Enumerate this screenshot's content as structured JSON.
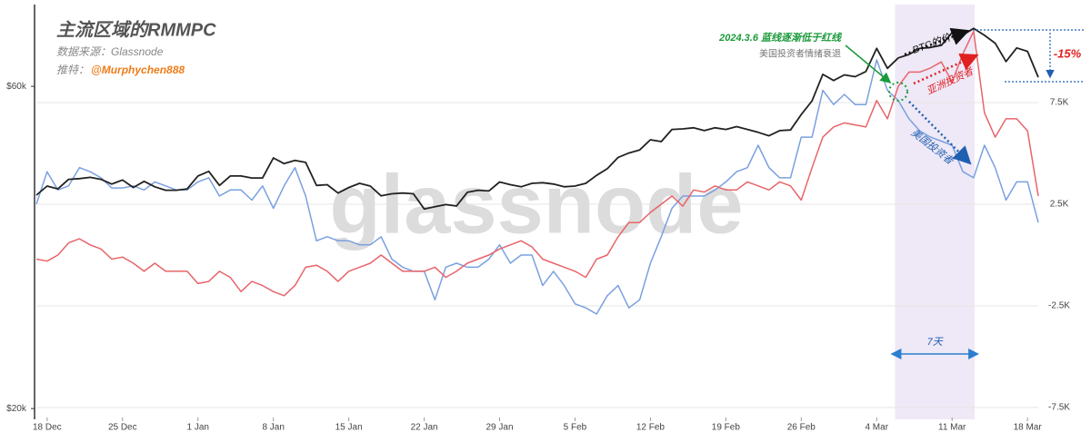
{
  "chart_data": {
    "type": "line",
    "title": "主流区域的RMMPC",
    "source": "数据来源：Glassnode",
    "twitter_label": "推特：",
    "twitter_handle": "@Murphychen888",
    "watermark": "glassnode",
    "annotations": {
      "date_note": "2024.3.6 蓝线逐渐低于红线",
      "sentiment_note": "美国投资者情绪衰退",
      "drop": "-15%"
    },
    "highlight": {
      "x": [
        78.7,
        86.1
      ],
      "label": "7天",
      "color": "#eee8f7"
    },
    "yscale": "log",
    "grid": true,
    "x": [
      -1,
      0,
      1,
      2,
      3,
      4,
      5,
      6,
      7,
      8,
      9,
      10,
      11,
      12,
      13,
      14,
      15,
      16,
      17,
      18,
      19,
      20,
      21,
      22,
      23,
      24,
      25,
      26,
      27,
      28,
      29,
      30,
      31,
      32,
      33,
      34,
      35,
      36,
      37,
      38,
      39,
      40,
      41,
      42,
      43,
      44,
      45,
      46,
      47,
      48,
      49,
      50,
      51,
      52,
      53,
      54,
      55,
      56,
      57,
      58,
      59,
      60,
      61,
      62,
      63,
      64,
      65,
      66,
      67,
      68,
      69,
      70,
      71,
      72,
      73,
      74,
      75,
      76,
      77,
      78,
      79,
      80,
      81,
      82,
      83,
      84,
      85,
      86,
      87,
      88,
      89,
      90,
      91,
      92
    ],
    "xlim": [
      -1,
      92
    ],
    "xticks": [
      {
        "value": 0,
        "label": "18 Dec"
      },
      {
        "value": 7,
        "label": "25 Dec"
      },
      {
        "value": 14,
        "label": "1 Jan"
      },
      {
        "value": 21,
        "label": "8 Jan"
      },
      {
        "value": 28,
        "label": "15 Jan"
      },
      {
        "value": 35,
        "label": "22 Jan"
      },
      {
        "value": 42,
        "label": "29 Jan"
      },
      {
        "value": 49,
        "label": "5 Feb"
      },
      {
        "value": 56,
        "label": "12 Feb"
      },
      {
        "value": 63,
        "label": "19 Feb"
      },
      {
        "value": 70,
        "label": "26 Feb"
      },
      {
        "value": 77,
        "label": "4 Mar"
      },
      {
        "value": 84,
        "label": "11 Mar"
      },
      {
        "value": 91,
        "label": "18 Mar"
      }
    ],
    "ylim": [
      19400,
      79300
    ],
    "yticks": [
      {
        "value": 60000,
        "label": "$60k"
      },
      {
        "value": 20000,
        "label": "$20k"
      }
    ],
    "y2lim": [
      -7.99,
      12.32
    ],
    "y2ticks": [
      {
        "value": 7.5,
        "label": "7.5K"
      },
      {
        "value": 2.5,
        "label": "2.5K"
      },
      {
        "value": -2.5,
        "label": "-2.5K"
      },
      {
        "value": -7.5,
        "label": "-7.5K"
      }
    ],
    "series": [
      {
        "name": "BTC的价格",
        "color": "#222222",
        "axis": "y",
        "values": [
          41400,
          42700,
          42300,
          43700,
          43800,
          44000,
          43700,
          43000,
          43600,
          42500,
          43400,
          42600,
          42100,
          42100,
          42300,
          44200,
          44900,
          42800,
          44200,
          44200,
          43900,
          43900,
          47000,
          46100,
          46600,
          46300,
          42800,
          42900,
          41700,
          42500,
          43100,
          42700,
          41300,
          41600,
          41700,
          41600,
          39500,
          39800,
          40100,
          39900,
          41800,
          42100,
          42000,
          43300,
          42900,
          42600,
          43100,
          43200,
          43000,
          42600,
          42700,
          43100,
          44300,
          45300,
          47100,
          47800,
          48300,
          50000,
          49700,
          51800,
          51900,
          52100,
          51600,
          52100,
          51800,
          52300,
          51800,
          51300,
          50700,
          51600,
          51700,
          54500,
          57100,
          62500,
          61200,
          62400,
          62000,
          63100,
          68300,
          63800,
          66100,
          66900,
          68300,
          68500,
          69000,
          72100,
          71500,
          73100,
          71400,
          69500,
          65300,
          68400,
          67600,
          61900
        ]
      },
      {
        "name": "亚洲投资者",
        "color": "#e8646a",
        "axis": "y2",
        "values": [
          -0.2,
          -0.3,
          0.0,
          0.6,
          0.8,
          0.5,
          0.3,
          -0.2,
          -0.1,
          -0.4,
          -0.8,
          -0.4,
          -0.8,
          -0.8,
          -0.8,
          -1.4,
          -1.3,
          -0.8,
          -1.1,
          -1.8,
          -1.3,
          -1.5,
          -1.8,
          -2.0,
          -1.5,
          -0.6,
          -0.5,
          -0.8,
          -1.3,
          -0.8,
          -0.6,
          -0.4,
          0.0,
          -0.4,
          -0.8,
          -0.8,
          -0.8,
          -0.6,
          -1.1,
          -0.8,
          -0.4,
          -0.2,
          0.0,
          0.3,
          0.5,
          0.7,
          0.4,
          -0.2,
          -0.4,
          -0.6,
          -0.8,
          -1.1,
          -0.2,
          0.0,
          0.9,
          1.6,
          1.6,
          2.1,
          2.5,
          2.9,
          2.4,
          3.2,
          3.1,
          3.4,
          3.2,
          3.2,
          3.6,
          3.4,
          3.2,
          3.6,
          3.4,
          2.7,
          4.3,
          5.8,
          6.3,
          6.5,
          6.4,
          6.3,
          7.6,
          6.7,
          8.3,
          9.0,
          9.0,
          9.2,
          9.5,
          8.5,
          9.9,
          11.0,
          7.0,
          5.8,
          6.7,
          6.7,
          6.1,
          2.9
        ]
      },
      {
        "name": "美国投资者",
        "color": "#7aa0e0",
        "axis": "y2",
        "values": [
          2.5,
          4.1,
          3.2,
          3.4,
          4.3,
          4.1,
          3.8,
          3.3,
          3.3,
          3.4,
          3.2,
          3.6,
          3.4,
          3.2,
          3.2,
          3.6,
          3.8,
          2.9,
          3.2,
          3.2,
          2.7,
          3.4,
          2.3,
          3.4,
          4.3,
          2.9,
          0.7,
          0.9,
          0.7,
          0.7,
          0.5,
          0.5,
          0.9,
          -0.2,
          -0.6,
          -0.8,
          -0.8,
          -2.2,
          -0.6,
          -0.4,
          -0.6,
          -0.6,
          -0.2,
          0.5,
          -0.4,
          0.0,
          0.0,
          -1.5,
          -0.8,
          -1.5,
          -2.4,
          -2.6,
          -2.9,
          -2.0,
          -1.5,
          -2.6,
          -2.2,
          -0.4,
          0.9,
          2.3,
          2.9,
          2.9,
          2.9,
          3.2,
          3.6,
          4.1,
          4.3,
          5.4,
          4.3,
          3.8,
          3.8,
          5.8,
          5.8,
          8.1,
          7.4,
          7.9,
          7.4,
          7.4,
          9.6,
          8.1,
          7.6,
          6.7,
          6.1,
          5.8,
          5.6,
          5.4,
          4.1,
          3.8,
          5.4,
          4.3,
          2.7,
          3.6,
          3.6,
          1.6
        ]
      }
    ]
  }
}
